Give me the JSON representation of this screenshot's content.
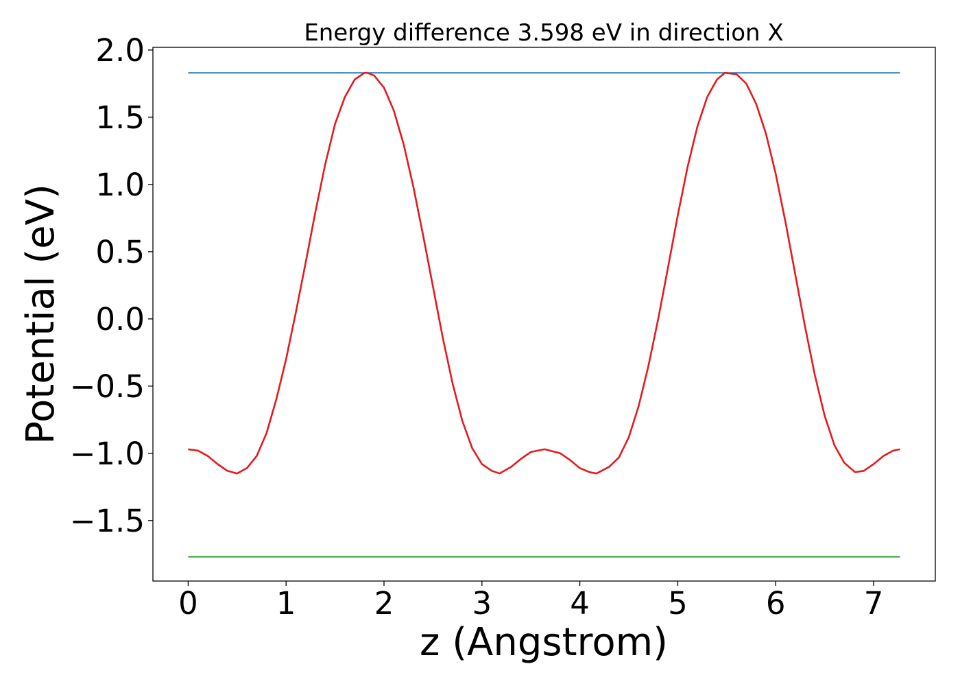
{
  "chart_data": {
    "type": "line",
    "title": "Energy difference 3.598 eV in direction X",
    "xlabel": "z (Angstrom)",
    "ylabel": "Potential (eV)",
    "xlim": [
      -0.36,
      7.63
    ],
    "ylim": [
      -1.95,
      2.02
    ],
    "xticks": [
      0,
      1,
      2,
      3,
      4,
      5,
      6,
      7
    ],
    "xtick_labels": [
      "0",
      "1",
      "2",
      "3",
      "4",
      "5",
      "6",
      "7"
    ],
    "yticks": [
      -1.5,
      -1.0,
      -0.5,
      0.0,
      0.5,
      1.0,
      1.5,
      2.0
    ],
    "ytick_labels": [
      "−1.5",
      "−1.0",
      "−0.5",
      "0.0",
      "0.5",
      "1.0",
      "1.5",
      "2.0"
    ],
    "grid": false,
    "series": [
      {
        "color": "#1f77b4",
        "x": [
          0,
          7.27
        ],
        "y": [
          1.83,
          1.83
        ]
      },
      {
        "color": "#2ca02c",
        "x": [
          0,
          7.27
        ],
        "y": [
          -1.77,
          -1.77
        ]
      },
      {
        "color": "#e41a1c",
        "x": [
          0,
          0.1,
          0.2,
          0.3,
          0.4,
          0.5,
          0.6,
          0.7,
          0.8,
          0.9,
          1.0,
          1.1,
          1.2,
          1.3,
          1.4,
          1.5,
          1.6,
          1.7,
          1.8,
          1.83,
          1.9,
          2.0,
          2.1,
          2.2,
          2.3,
          2.4,
          2.5,
          2.6,
          2.7,
          2.8,
          2.9,
          3.0,
          3.1,
          3.18,
          3.3,
          3.4,
          3.5,
          3.64,
          3.8,
          3.9,
          4.0,
          4.1,
          4.17,
          4.3,
          4.4,
          4.5,
          4.6,
          4.7,
          4.8,
          4.9,
          5.0,
          5.1,
          5.2,
          5.3,
          5.4,
          5.48,
          5.6,
          5.7,
          5.8,
          5.9,
          6.0,
          6.1,
          6.2,
          6.3,
          6.4,
          6.5,
          6.6,
          6.7,
          6.81,
          6.9,
          7.0,
          7.1,
          7.2,
          7.27
        ],
        "y": [
          -0.97,
          -0.98,
          -1.02,
          -1.08,
          -1.13,
          -1.15,
          -1.11,
          -1.02,
          -0.85,
          -0.6,
          -0.3,
          0.05,
          0.42,
          0.8,
          1.15,
          1.45,
          1.65,
          1.78,
          1.83,
          1.83,
          1.81,
          1.72,
          1.55,
          1.3,
          0.98,
          0.62,
          0.24,
          -0.14,
          -0.48,
          -0.76,
          -0.96,
          -1.08,
          -1.13,
          -1.15,
          -1.1,
          -1.04,
          -0.99,
          -0.97,
          -1.0,
          -1.05,
          -1.11,
          -1.14,
          -1.15,
          -1.1,
          -1.03,
          -0.88,
          -0.65,
          -0.35,
          0.0,
          0.38,
          0.77,
          1.13,
          1.43,
          1.65,
          1.78,
          1.83,
          1.82,
          1.75,
          1.6,
          1.38,
          1.08,
          0.72,
          0.33,
          -0.06,
          -0.42,
          -0.72,
          -0.94,
          -1.07,
          -1.14,
          -1.13,
          -1.08,
          -1.02,
          -0.98,
          -0.97
        ]
      }
    ]
  }
}
